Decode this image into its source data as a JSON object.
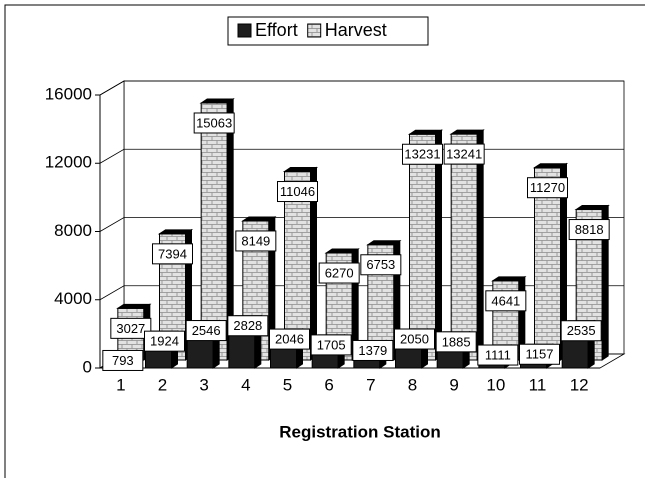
{
  "chart_data": {
    "type": "bar3d",
    "xlabel": "Registration Station",
    "categories": [
      "1",
      "2",
      "3",
      "4",
      "5",
      "6",
      "7",
      "8",
      "9",
      "10",
      "11",
      "12"
    ],
    "series": [
      {
        "name": "Effort",
        "color": "#1e1e1e",
        "values": [
          793,
          1924,
          2546,
          2828,
          2046,
          1705,
          1379,
          2050,
          1885,
          1111,
          1157,
          2535
        ]
      },
      {
        "name": "Harvest",
        "color": "#e2e2e2",
        "values": [
          3027,
          7394,
          15063,
          8149,
          11046,
          6270,
          6753,
          13231,
          13241,
          4641,
          11270,
          8818
        ]
      }
    ],
    "ylim": [
      0,
      16000
    ],
    "yticks": [
      0,
      4000,
      8000,
      12000,
      16000
    ],
    "grid": true,
    "legend": "top"
  }
}
